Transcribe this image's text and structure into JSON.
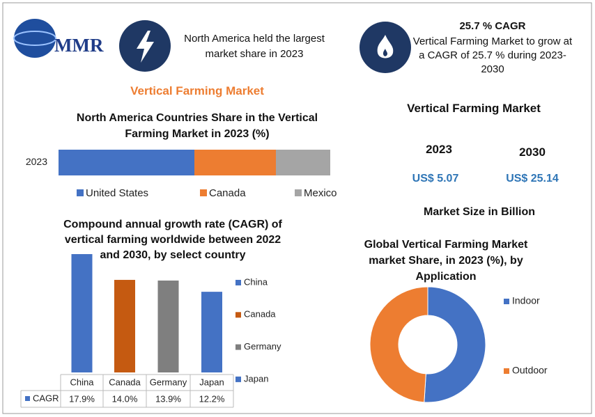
{
  "header": {
    "logo": "MMR",
    "highlight": "North America held the largest market share in 2023",
    "cagr_title": "25.7 % CAGR",
    "cagr_text": "Vertical Farming Market to grow at a CAGR of 25.7 % during 2023-2030"
  },
  "main_title": "Vertical Farming Market",
  "market_size": {
    "title": "Vertical Farming Market",
    "years": [
      "2023",
      "2030"
    ],
    "values": [
      "US$ 5.07",
      "US$ 25.14"
    ],
    "note": "Market Size in Billion"
  },
  "chart_data": [
    {
      "type": "bar",
      "stacked": true,
      "title": "North America  Countries Share in the  Vertical Farming Market in 2023 (%)",
      "categories": [
        "2023"
      ],
      "series": [
        {
          "name": "United States",
          "color": "#4472c4",
          "values": [
            50
          ]
        },
        {
          "name": "Canada",
          "color": "#ed7d31",
          "values": [
            30
          ]
        },
        {
          "name": "Mexico",
          "color": "#a5a5a5",
          "values": [
            20
          ]
        }
      ]
    },
    {
      "type": "bar",
      "stacked": false,
      "title": "Compound annual growth rate (CAGR) of vertical farming worldwide between 2022 and 2030, by select country",
      "categories": [
        "China",
        "Canada",
        "Germany",
        "Japan"
      ],
      "colors": [
        "#4472c4",
        "#c55a11",
        "#7f7f7f",
        "#4472c4"
      ],
      "series": [
        {
          "name": "CAGR",
          "color": "#4472c4",
          "values": [
            17.9,
            14.0,
            13.9,
            12.2
          ],
          "value_labels": [
            "17.9%",
            "14.0%",
            "13.9%",
            "12.2%"
          ]
        }
      ]
    },
    {
      "type": "donut",
      "title": "Global Vertical Farming Market market Share, in 2023 (%), by Application",
      "categories": [
        "Indoor",
        "Outdoor"
      ],
      "values": [
        51,
        49
      ],
      "colors": [
        "#4472c4",
        "#ed7d31"
      ]
    }
  ]
}
